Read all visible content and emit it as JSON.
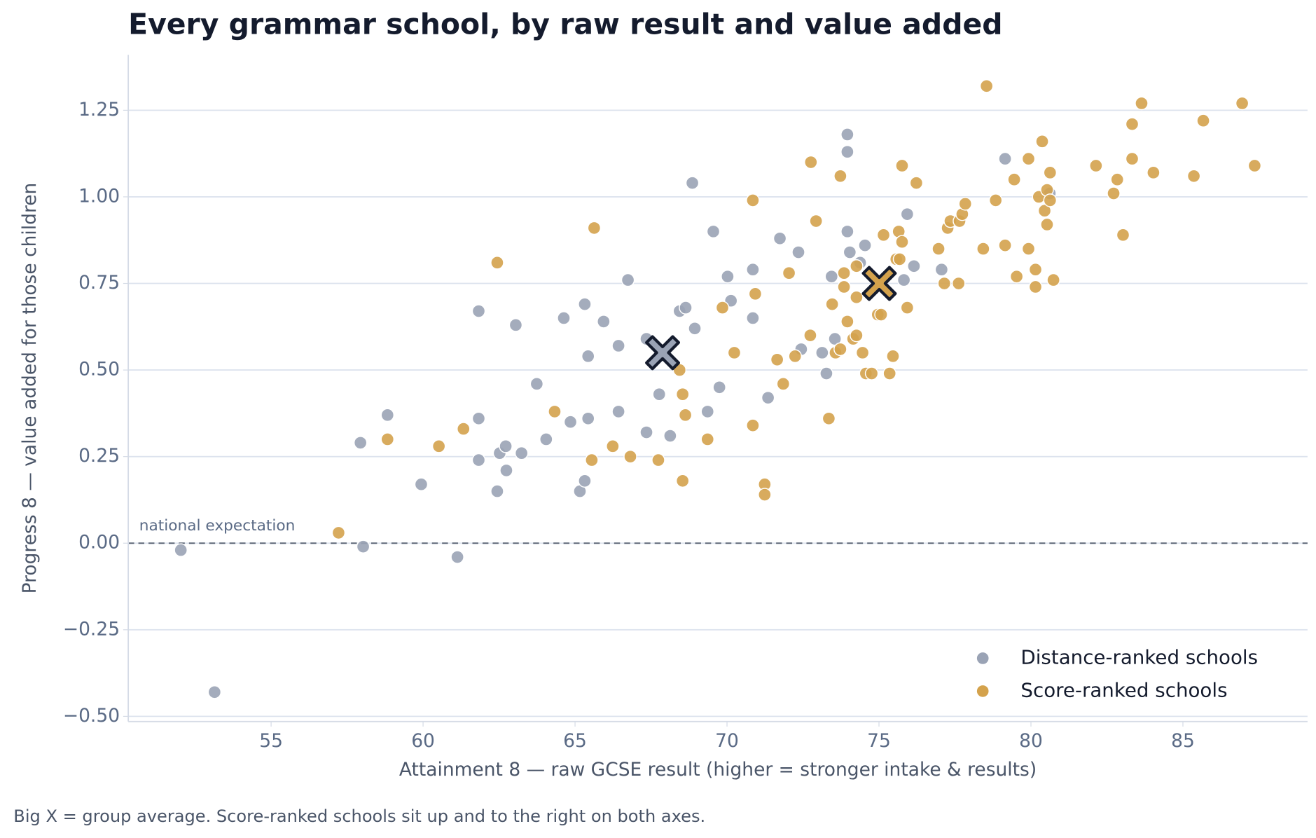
{
  "chart_data": {
    "type": "scatter",
    "title": "Every grammar school, by raw result and value added",
    "x_label": "Attainment 8 — raw GCSE result (higher = stronger intake & results)",
    "y_label": "Progress 8 — value added for those children",
    "footnote": "Big X = group average. Score-ranked schools sit up and to the right on both axes.",
    "reference_line": {
      "value": 0,
      "label": "national expectation"
    },
    "xlim": [
      50.3,
      89.1
    ],
    "ylim": [
      -0.515,
      1.41
    ],
    "xticks": [
      55,
      60,
      65,
      70,
      75,
      80,
      85
    ],
    "yticks": [
      {
        "value": -0.5,
        "label": "−0.50"
      },
      {
        "value": -0.25,
        "label": "−0.25"
      },
      {
        "value": 0,
        "label": "0.00"
      },
      {
        "value": 0.25,
        "label": "0.25"
      },
      {
        "value": 0.5,
        "label": "0.50"
      },
      {
        "value": 0.75,
        "label": "0.75"
      },
      {
        "value": 1.0,
        "label": "1.00"
      },
      {
        "value": 1.25,
        "label": "1.25"
      }
    ],
    "grid": true,
    "legend": "lower right",
    "series": [
      {
        "name": "Distance-ranked schools",
        "color": "#9aa3b5",
        "x": [
          52.03,
          53.14,
          57.94,
          58.03,
          58.83,
          59.94,
          61.13,
          61.83,
          61.83,
          61.83,
          62.44,
          62.52,
          62.72,
          62.74,
          63.05,
          63.24,
          63.74,
          64.05,
          64.63,
          64.85,
          65.16,
          65.32,
          65.32,
          65.43,
          65.43,
          65.94,
          66.43,
          66.43,
          66.74,
          67.35,
          67.35,
          67.77,
          68.13,
          68.44,
          68.64,
          68.86,
          68.94,
          69.36,
          69.55,
          69.75,
          70.02,
          70.13,
          70.85,
          70.85,
          71.35,
          71.74,
          72.35,
          72.44,
          73.13,
          73.27,
          73.44,
          73.55,
          73.96,
          73.96,
          73.96,
          74.04,
          74.38,
          74.54,
          75.82,
          75.93,
          76.15,
          77.06,
          79.15,
          80.62
        ],
        "y": [
          -0.02,
          -0.43,
          0.29,
          -0.01,
          0.37,
          0.17,
          -0.04,
          0.67,
          0.36,
          0.24,
          0.15,
          0.26,
          0.28,
          0.21,
          0.63,
          0.26,
          0.46,
          0.3,
          0.65,
          0.35,
          0.15,
          0.69,
          0.18,
          0.54,
          0.36,
          0.64,
          0.57,
          0.38,
          0.76,
          0.32,
          0.59,
          0.43,
          0.31,
          0.67,
          0.68,
          1.04,
          0.62,
          0.38,
          0.9,
          0.45,
          0.77,
          0.7,
          0.79,
          0.65,
          0.42,
          0.88,
          0.84,
          0.56,
          0.55,
          0.49,
          0.77,
          0.59,
          1.18,
          1.13,
          0.9,
          0.84,
          0.81,
          0.86,
          0.76,
          0.95,
          0.8,
          0.79,
          1.11,
          1.01
        ],
        "mean": {
          "x": 67.88,
          "y": 0.55
        }
      },
      {
        "name": "Score-ranked schools",
        "color": "#d4a24c",
        "x": [
          57.22,
          58.83,
          60.52,
          61.33,
          62.44,
          64.33,
          65.55,
          65.63,
          66.24,
          66.82,
          67.74,
          68.44,
          68.54,
          68.54,
          68.63,
          69.36,
          69.85,
          70.24,
          70.85,
          70.93,
          70.85,
          71.24,
          71.24,
          71.65,
          71.85,
          72.04,
          72.24,
          72.74,
          72.76,
          72.93,
          73.35,
          73.46,
          73.57,
          73.73,
          73.73,
          73.85,
          73.85,
          73.96,
          74.15,
          74.26,
          74.26,
          74.26,
          74.46,
          74.57,
          74.76,
          74.96,
          75.07,
          75.15,
          75.35,
          75.46,
          75.57,
          75.68,
          75.65,
          75.76,
          75.76,
          75.93,
          76.23,
          76.96,
          77.15,
          77.26,
          77.35,
          77.62,
          77.65,
          77.74,
          77.84,
          78.43,
          78.54,
          78.84,
          79.15,
          79.45,
          79.53,
          79.92,
          79.92,
          80.15,
          80.15,
          80.26,
          80.37,
          80.45,
          80.53,
          80.53,
          80.63,
          80.63,
          80.74,
          82.14,
          82.72,
          82.84,
          83.03,
          83.33,
          83.33,
          83.64,
          84.03,
          85.36,
          85.67,
          86.95,
          87.36
        ],
        "y": [
          0.03,
          0.3,
          0.28,
          0.33,
          0.81,
          0.38,
          0.24,
          0.91,
          0.28,
          0.25,
          0.24,
          0.5,
          0.43,
          0.18,
          0.37,
          0.3,
          0.68,
          0.55,
          0.99,
          0.72,
          0.34,
          0.17,
          0.14,
          0.53,
          0.46,
          0.78,
          0.54,
          0.6,
          1.1,
          0.93,
          0.36,
          0.69,
          0.55,
          0.56,
          1.06,
          0.74,
          0.78,
          0.64,
          0.59,
          0.6,
          0.71,
          0.8,
          0.55,
          0.49,
          0.49,
          0.66,
          0.66,
          0.89,
          0.49,
          0.54,
          0.82,
          0.82,
          0.9,
          0.87,
          1.09,
          0.68,
          1.04,
          0.85,
          0.75,
          0.91,
          0.93,
          0.75,
          0.93,
          0.95,
          0.98,
          0.85,
          1.32,
          0.99,
          0.86,
          1.05,
          0.77,
          0.85,
          1.11,
          0.74,
          0.79,
          1.0,
          1.16,
          0.96,
          1.02,
          0.92,
          0.99,
          1.07,
          0.76,
          1.09,
          1.01,
          1.05,
          0.89,
          1.21,
          1.11,
          1.27,
          1.07,
          1.06,
          1.22,
          1.27,
          1.09
        ],
        "mean": {
          "x": 75.01,
          "y": 0.75
        }
      }
    ]
  }
}
